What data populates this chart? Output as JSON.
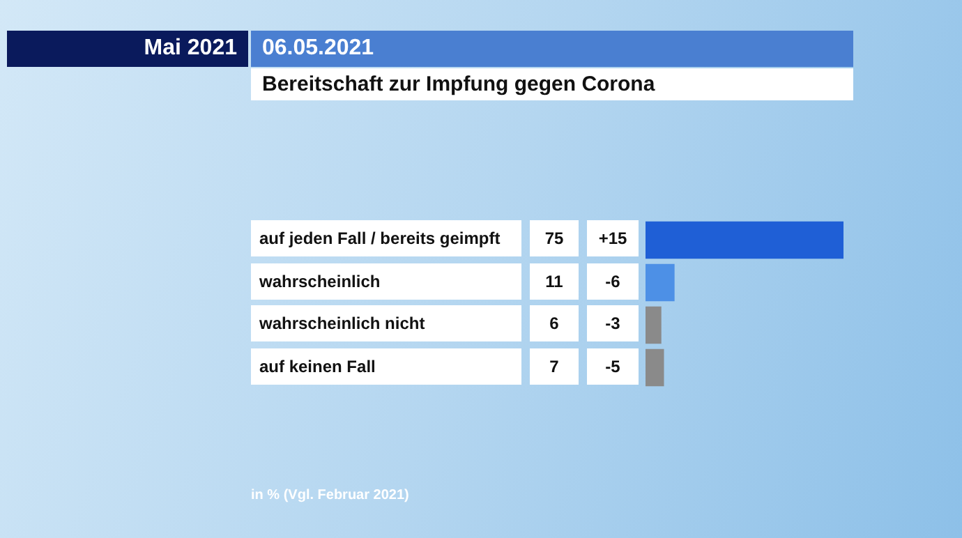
{
  "chart_data": {
    "type": "bar",
    "orientation": "horizontal",
    "title": "Bereitschaft zur Impfung gegen Corona",
    "subtitle": "06.05.2021",
    "categories": [
      "auf jeden Fall / bereits geimpft",
      "wahrscheinlich",
      "wahrscheinlich nicht",
      "auf keinen Fall"
    ],
    "values": [
      75,
      11,
      6,
      7
    ],
    "colors": [
      "#1f5fd6",
      "#4d90e6",
      "#8a8a8a",
      "#8a8a8a"
    ],
    "data_labels": true,
    "annotations": [
      "Mai 2021",
      "in % (Vgl. Februar 2021)",
      "+15",
      "-6",
      "-3",
      "-5"
    ],
    "legend": false
  }
}
